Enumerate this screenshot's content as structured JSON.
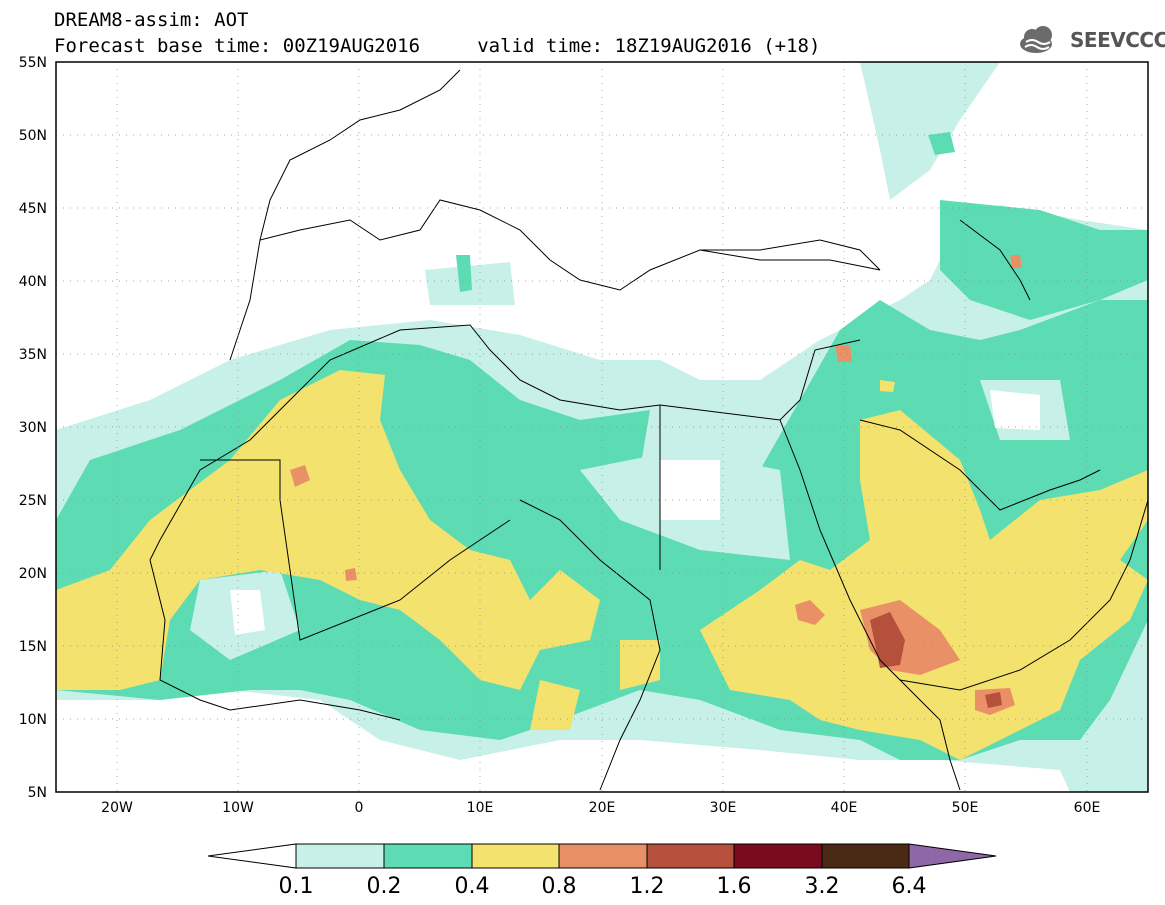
{
  "header": {
    "line1": "DREAM8-assim: AOT",
    "line2": "Forecast base time: 00Z19AUG2016     valid time: 18Z19AUG2016 (+18)",
    "logo_text": "SEEVCCC"
  },
  "map": {
    "lon_range": [
      -25,
      65
    ],
    "lat_range": [
      5,
      55
    ],
    "lat_ticks": [
      "55N",
      "50N",
      "45N",
      "40N",
      "35N",
      "30N",
      "25N",
      "20N",
      "15N",
      "10N",
      "5N"
    ],
    "lon_ticks": [
      "20W",
      "10W",
      "0",
      "10E",
      "20E",
      "30E",
      "40E",
      "50E",
      "60E"
    ],
    "field_colors": {
      "0.1-0.2": "#c7f0e8",
      "0.2-0.4": "#5ddcb4",
      "0.4-0.8": "#f4e26e",
      "0.8-1.2": "#ea9066",
      "1.2-1.6": "#b4503c",
      "1.6-3.2": "#7a0a1e",
      "3.2-6.4": "#4a2a14",
      ">6.4": "#8e67a6"
    }
  },
  "colorbar": {
    "labels": [
      "0.1",
      "0.2",
      "0.4",
      "0.8",
      "1.2",
      "1.6",
      "3.2",
      "6.4"
    ],
    "colors": [
      "#ffffff",
      "#c7f0e8",
      "#5ddcb4",
      "#f4e26e",
      "#ea9066",
      "#b4503c",
      "#7a0a1e",
      "#4a2a14",
      "#8e67a6"
    ]
  }
}
